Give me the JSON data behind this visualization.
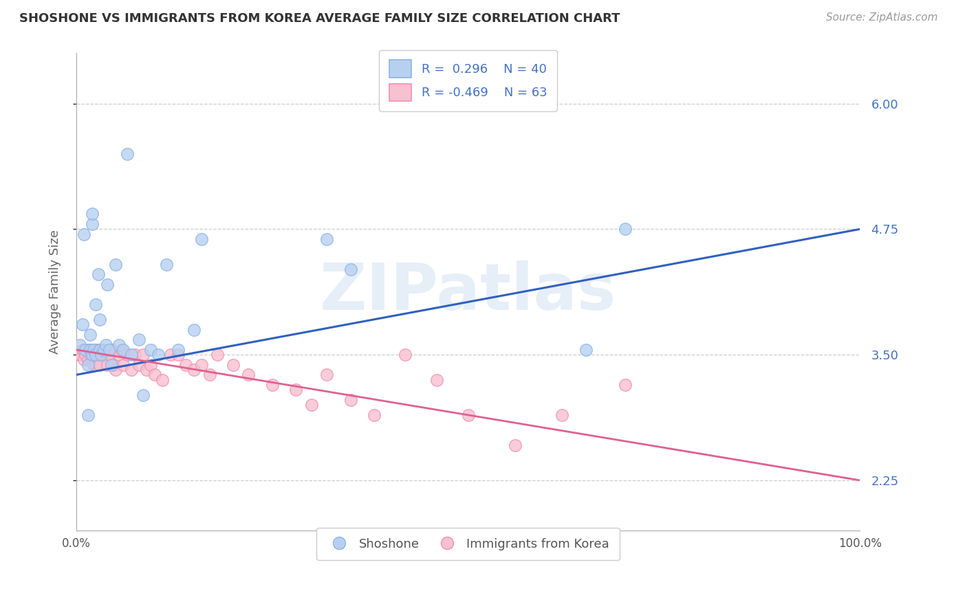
{
  "title": "SHOSHONE VS IMMIGRANTS FROM KOREA AVERAGE FAMILY SIZE CORRELATION CHART",
  "source": "Source: ZipAtlas.com",
  "ylabel": "Average Family Size",
  "xlim": [
    0,
    1
  ],
  "ylim": [
    1.75,
    6.5
  ],
  "yticks": [
    2.25,
    3.5,
    4.75,
    6.0
  ],
  "xtick_labels": [
    "0.0%",
    "100.0%"
  ],
  "background_color": "#ffffff",
  "grid_color": "#c8c8c8",
  "shoshone_color": "#8ab4e8",
  "shoshone_fill": "#b8d0f0",
  "korea_color": "#f090b0",
  "korea_fill": "#f8c0d0",
  "blue_line_color": "#3060c0",
  "pink_line_color": "#e06090",
  "watermark": "ZIPatlas",
  "shoshone_x": [
    0.005,
    0.008,
    0.01,
    0.012,
    0.015,
    0.018,
    0.018,
    0.02,
    0.02,
    0.02,
    0.022,
    0.025,
    0.025,
    0.028,
    0.03,
    0.03,
    0.032,
    0.035,
    0.038,
    0.04,
    0.042,
    0.045,
    0.05,
    0.055,
    0.06,
    0.065,
    0.07,
    0.08,
    0.095,
    0.105,
    0.115,
    0.13,
    0.15,
    0.16,
    0.32,
    0.35,
    0.65,
    0.7,
    0.015,
    0.085
  ],
  "shoshone_y": [
    3.6,
    3.8,
    4.7,
    3.55,
    3.4,
    3.55,
    3.7,
    3.5,
    4.8,
    4.9,
    3.55,
    3.5,
    4.0,
    4.3,
    3.55,
    3.85,
    3.5,
    3.55,
    3.6,
    4.2,
    3.55,
    3.4,
    4.4,
    3.6,
    3.55,
    5.5,
    3.5,
    3.65,
    3.55,
    3.5,
    4.4,
    3.55,
    3.75,
    4.65,
    4.65,
    4.35,
    3.55,
    4.75,
    2.9,
    3.1
  ],
  "korea_x": [
    0.003,
    0.005,
    0.008,
    0.01,
    0.01,
    0.012,
    0.015,
    0.015,
    0.018,
    0.018,
    0.02,
    0.02,
    0.022,
    0.022,
    0.025,
    0.025,
    0.025,
    0.028,
    0.03,
    0.03,
    0.03,
    0.032,
    0.035,
    0.038,
    0.04,
    0.04,
    0.042,
    0.045,
    0.048,
    0.05,
    0.055,
    0.058,
    0.06,
    0.065,
    0.07,
    0.075,
    0.08,
    0.085,
    0.09,
    0.095,
    0.1,
    0.11,
    0.12,
    0.13,
    0.14,
    0.15,
    0.16,
    0.17,
    0.18,
    0.2,
    0.22,
    0.25,
    0.28,
    0.3,
    0.32,
    0.35,
    0.38,
    0.42,
    0.46,
    0.5,
    0.56,
    0.62,
    0.7
  ],
  "korea_y": [
    3.5,
    3.5,
    3.55,
    3.55,
    3.45,
    3.5,
    3.55,
    3.45,
    3.5,
    3.55,
    3.5,
    3.45,
    3.55,
    3.4,
    3.5,
    3.55,
    3.4,
    3.55,
    3.5,
    3.55,
    3.4,
    3.5,
    3.55,
    3.5,
    3.5,
    3.4,
    3.5,
    3.55,
    3.4,
    3.35,
    3.5,
    3.55,
    3.4,
    3.5,
    3.35,
    3.5,
    3.4,
    3.5,
    3.35,
    3.4,
    3.3,
    3.25,
    3.5,
    3.5,
    3.4,
    3.35,
    3.4,
    3.3,
    3.5,
    3.4,
    3.3,
    3.2,
    3.15,
    3.0,
    3.3,
    3.05,
    2.9,
    3.5,
    3.25,
    2.9,
    2.6,
    2.9,
    3.2
  ],
  "blue_line_y0": 3.3,
  "blue_line_y1": 4.75,
  "pink_line_y0": 3.55,
  "pink_line_y1": 2.25
}
